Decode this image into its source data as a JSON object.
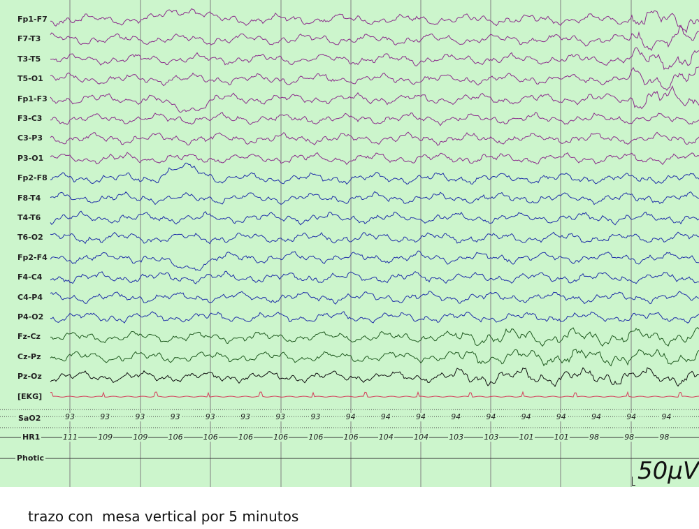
{
  "channels": [
    {
      "label": "Fp1-F7",
      "color": "#8b2c8b"
    },
    {
      "label": "F7-T3",
      "color": "#8b2c8b"
    },
    {
      "label": "T3-T5",
      "color": "#8b2c8b"
    },
    {
      "label": "T5-O1",
      "color": "#8b2c8b"
    },
    {
      "label": "Fp1-F3",
      "color": "#8b2c8b"
    },
    {
      "label": "F3-C3",
      "color": "#8b2c8b"
    },
    {
      "label": "C3-P3",
      "color": "#8b2c8b"
    },
    {
      "label": "P3-O1",
      "color": "#8b2c8b"
    },
    {
      "label": "Fp2-F8",
      "color": "#1f2fa8"
    },
    {
      "label": "F8-T4",
      "color": "#1f2fa8"
    },
    {
      "label": "T4-T6",
      "color": "#1f2fa8"
    },
    {
      "label": "T6-O2",
      "color": "#1f2fa8"
    },
    {
      "label": "Fp2-F4",
      "color": "#1f2fa8"
    },
    {
      "label": "F4-C4",
      "color": "#1f2fa8"
    },
    {
      "label": "C4-P4",
      "color": "#1f2fa8"
    },
    {
      "label": "P4-O2",
      "color": "#1f2fa8"
    },
    {
      "label": "Fz-Cz",
      "color": "#1f5a1f"
    },
    {
      "label": "Cz-Pz",
      "color": "#1f5a1f"
    },
    {
      "label": "Pz-Oz",
      "color": "#111111"
    },
    {
      "label": "[EKG]",
      "color": "#d43c5a"
    }
  ],
  "sao2": {
    "label": "SaO2",
    "values": [
      "93",
      "93",
      "93",
      "93",
      "93",
      "93",
      "93",
      "93",
      "94",
      "94",
      "94",
      "94",
      "94",
      "94",
      "94",
      "94",
      "94",
      "94"
    ]
  },
  "hr": {
    "label": "HR1",
    "values": [
      "111",
      "109",
      "109",
      "106",
      "106",
      "106",
      "106",
      "106",
      "106",
      "104",
      "104",
      "103",
      "103",
      "101",
      "101",
      "98",
      "98",
      "98"
    ]
  },
  "photic": {
    "label": "Photic"
  },
  "scale": {
    "label": "50µV"
  },
  "caption": "trazo con  mesa vertical por 5 minutos",
  "colors": {
    "background": "#ccf5cc",
    "grid": "#808080"
  }
}
